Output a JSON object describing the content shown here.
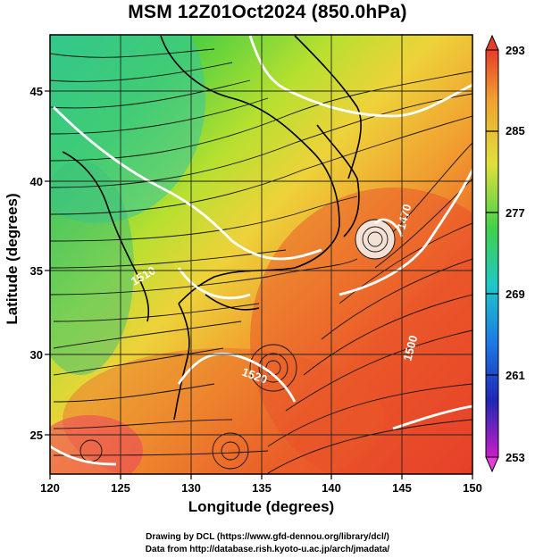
{
  "title": "MSM 12Z01Oct2024 (850.0hPa)",
  "xaxis": {
    "label": "Longitude (degrees)",
    "ticks": [
      "120",
      "125",
      "130",
      "135",
      "140",
      "145",
      "150"
    ]
  },
  "yaxis": {
    "label": "Latitude  (degrees)",
    "ticks": [
      "25",
      "30",
      "35",
      "40",
      "45"
    ]
  },
  "colorbar": {
    "ticks": [
      "293",
      "285",
      "277",
      "269",
      "261",
      "253"
    ]
  },
  "contour_labels": [
    "1470",
    "1520",
    "1500",
    "1510"
  ],
  "credits": {
    "line1": "Drawing by DCL (https://www.gfd-dennou.org/library/dcl/)",
    "line2": "Data from http://database.rish.kyoto-u.ac.jp/arch/jmadata/"
  },
  "colors": {
    "cold": "#c81ec8",
    "cool": "#1e64e6",
    "mild": "#2ecc52",
    "warm": "#e2e23c",
    "hot": "#e83c1e"
  }
}
